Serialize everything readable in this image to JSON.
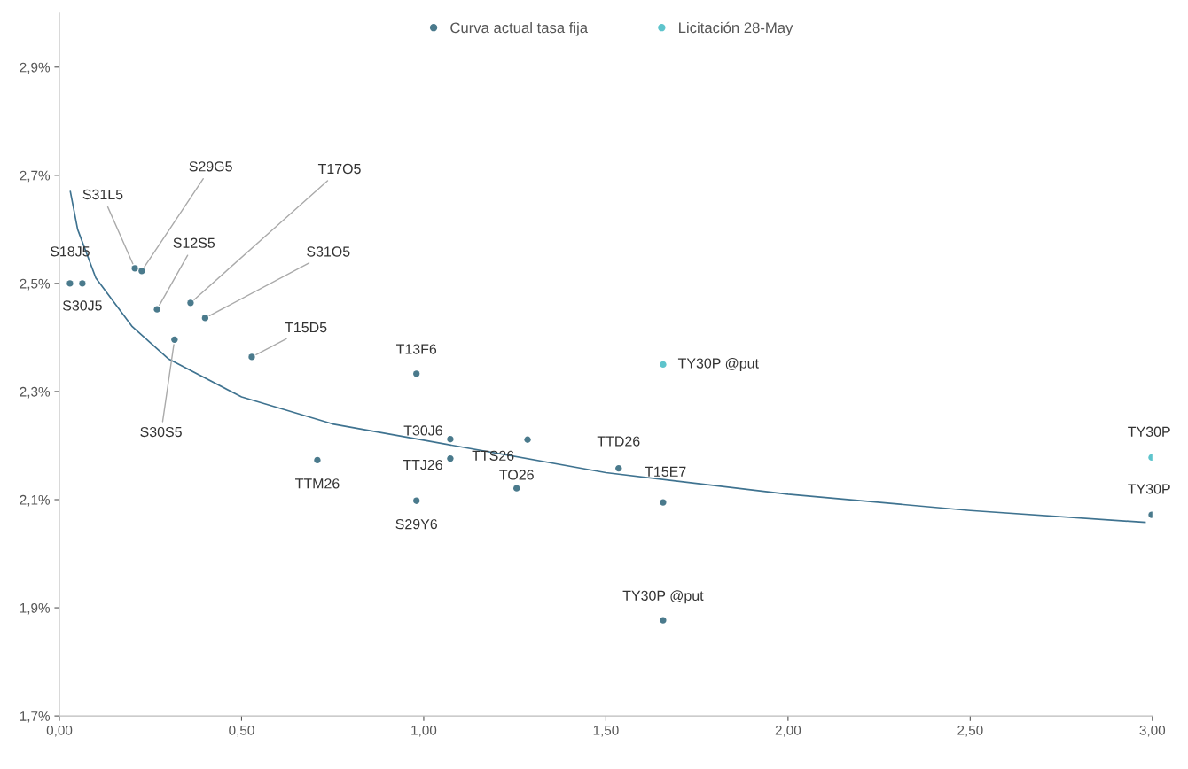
{
  "chart_data": {
    "type": "scatter",
    "xlim": [
      0,
      3.0
    ],
    "ylim": [
      1.7,
      3.0
    ],
    "xticks": [
      {
        "value": 0,
        "label": "0,00"
      },
      {
        "value": 0.5,
        "label": "0,50"
      },
      {
        "value": 1.0,
        "label": "1,00"
      },
      {
        "value": 1.5,
        "label": "1,50"
      },
      {
        "value": 2.0,
        "label": "2,00"
      },
      {
        "value": 2.5,
        "label": "2,50"
      },
      {
        "value": 3.0,
        "label": "3,00"
      }
    ],
    "yticks": [
      {
        "value": 1.7,
        "label": "1,7%"
      },
      {
        "value": 1.9,
        "label": "1,9%"
      },
      {
        "value": 2.1,
        "label": "2,1%"
      },
      {
        "value": 2.3,
        "label": "2,3%"
      },
      {
        "value": 2.5,
        "label": "2,5%"
      },
      {
        "value": 2.7,
        "label": "2,7%"
      },
      {
        "value": 2.9,
        "label": "2,9%"
      }
    ],
    "grid": false,
    "legend": "top",
    "marker": "circle",
    "series": [
      {
        "name": "Curva actual tasa fija",
        "color": "#4a7a8c",
        "x": [
          0.029,
          0.063,
          0.207,
          0.226,
          0.268,
          0.316,
          0.36,
          0.4,
          0.528,
          0.98,
          0.708,
          0.98,
          1.073,
          1.073,
          1.255,
          1.285,
          1.535,
          1.657,
          1.657,
          2.998
        ],
        "values": [
          2.5,
          2.5,
          2.528,
          2.523,
          2.452,
          2.396,
          2.464,
          2.436,
          2.364,
          2.333,
          2.173,
          2.098,
          2.212,
          2.176,
          2.121,
          2.211,
          2.158,
          2.095,
          1.877,
          2.072
        ]
      },
      {
        "name": "Licitación 28-May",
        "color": "#5ec4cc",
        "x": [
          1.657,
          2.998
        ],
        "values": [
          2.35,
          2.178
        ]
      },
      {
        "type": "line",
        "color": "#3f7390",
        "marker": "none",
        "x": [
          0.03,
          0.05,
          0.1,
          0.2,
          0.3,
          0.5,
          0.75,
          1.0,
          1.5,
          2.0,
          2.5,
          2.98
        ],
        "values": [
          2.67,
          2.6,
          2.51,
          2.42,
          2.36,
          2.29,
          2.24,
          2.21,
          2.15,
          2.11,
          2.08,
          2.058
        ]
      }
    ],
    "annotations": [
      {
        "text": "S18J5",
        "x": 0.029,
        "y": 2.5
      },
      {
        "text": "S30J5",
        "x": 0.063,
        "y": 2.5
      },
      {
        "text": "S31L5",
        "x": 0.207,
        "y": 2.528
      },
      {
        "text": "S29G5",
        "x": 0.226,
        "y": 2.523
      },
      {
        "text": "S12S5",
        "x": 0.268,
        "y": 2.452
      },
      {
        "text": "S30S5",
        "x": 0.316,
        "y": 2.396
      },
      {
        "text": "T17O5",
        "x": 0.36,
        "y": 2.464
      },
      {
        "text": "S31O5",
        "x": 0.4,
        "y": 2.436
      },
      {
        "text": "T15D5",
        "x": 0.528,
        "y": 2.364
      },
      {
        "text": "T13F6",
        "x": 0.98,
        "y": 2.333
      },
      {
        "text": "TTM26",
        "x": 0.708,
        "y": 2.173
      },
      {
        "text": "S29Y6",
        "x": 0.98,
        "y": 2.098
      },
      {
        "text": "T30J6",
        "x": 1.073,
        "y": 2.212
      },
      {
        "text": "TTJ26",
        "x": 1.073,
        "y": 2.176
      },
      {
        "text": "TO26",
        "x": 1.255,
        "y": 2.121
      },
      {
        "text": "TTS26",
        "x": 1.285,
        "y": 2.211
      },
      {
        "text": "TTD26",
        "x": 1.535,
        "y": 2.158
      },
      {
        "text": "T15E7",
        "x": 1.657,
        "y": 2.095
      },
      {
        "text": "TY30P @put",
        "x": 1.657,
        "y": 1.877
      },
      {
        "text": "TY30P",
        "x": 2.998,
        "y": 2.072
      },
      {
        "text": "TY30P @put",
        "x": 1.657,
        "y": 2.35
      },
      {
        "text": "TY30P",
        "x": 2.998,
        "y": 2.178
      }
    ]
  }
}
